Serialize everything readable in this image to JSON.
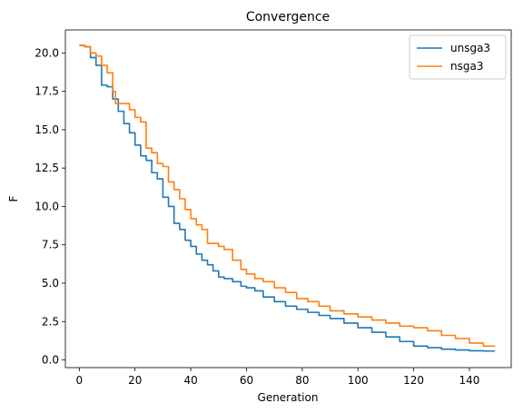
{
  "chart_data": {
    "type": "line",
    "title": "Convergence",
    "xlabel": "Generation",
    "ylabel": "F",
    "xlim": [
      -5,
      155
    ],
    "ylim": [
      -0.5,
      21.5
    ],
    "xticks": [
      0,
      20,
      40,
      60,
      80,
      100,
      120,
      140
    ],
    "yticks": [
      0.0,
      2.5,
      5.0,
      7.5,
      10.0,
      12.5,
      15.0,
      17.5,
      20.0
    ],
    "ytick_labels": [
      "0.0",
      "2.5",
      "5.0",
      "7.5",
      "10.0",
      "12.5",
      "15.0",
      "17.5",
      "20.0"
    ],
    "grid": false,
    "legend_position": "top-right",
    "series": [
      {
        "name": "unsga3",
        "color": "#1f77b4",
        "x": [
          0,
          2,
          4,
          6,
          8,
          10,
          12,
          14,
          16,
          18,
          20,
          22,
          24,
          26,
          28,
          30,
          32,
          34,
          36,
          38,
          40,
          42,
          44,
          46,
          48,
          50,
          52,
          55,
          58,
          60,
          63,
          66,
          70,
          74,
          78,
          82,
          86,
          90,
          95,
          100,
          105,
          110,
          115,
          120,
          125,
          130,
          135,
          140,
          145,
          149
        ],
        "y": [
          20.5,
          20.4,
          19.7,
          19.2,
          17.9,
          17.8,
          17.0,
          16.2,
          15.4,
          14.8,
          14.0,
          13.3,
          13.0,
          12.2,
          11.8,
          10.6,
          10.0,
          8.9,
          8.5,
          7.8,
          7.4,
          6.9,
          6.5,
          6.2,
          5.8,
          5.4,
          5.3,
          5.1,
          4.8,
          4.7,
          4.5,
          4.1,
          3.8,
          3.5,
          3.3,
          3.1,
          2.9,
          2.7,
          2.4,
          2.1,
          1.8,
          1.5,
          1.2,
          0.9,
          0.8,
          0.7,
          0.65,
          0.6,
          0.58,
          0.55
        ]
      },
      {
        "name": "nsga3",
        "color": "#ff7f0e",
        "x": [
          0,
          2,
          4,
          6,
          8,
          10,
          12,
          13,
          15,
          18,
          20,
          22,
          24,
          26,
          28,
          30,
          32,
          34,
          36,
          38,
          40,
          42,
          44,
          46,
          48,
          50,
          52,
          55,
          58,
          60,
          63,
          66,
          70,
          74,
          78,
          82,
          86,
          90,
          95,
          100,
          105,
          110,
          115,
          120,
          125,
          130,
          135,
          140,
          145,
          149
        ],
        "y": [
          20.5,
          20.4,
          20.0,
          19.8,
          19.2,
          18.7,
          17.5,
          16.7,
          16.7,
          16.3,
          15.8,
          15.5,
          13.8,
          13.5,
          12.8,
          12.6,
          11.6,
          11.1,
          10.5,
          9.8,
          9.2,
          8.8,
          8.5,
          7.6,
          7.6,
          7.4,
          7.2,
          6.5,
          5.9,
          5.6,
          5.3,
          5.1,
          4.7,
          4.4,
          4.0,
          3.8,
          3.5,
          3.2,
          3.0,
          2.8,
          2.6,
          2.4,
          2.2,
          2.1,
          1.9,
          1.6,
          1.4,
          1.1,
          0.9,
          0.85
        ]
      }
    ]
  }
}
